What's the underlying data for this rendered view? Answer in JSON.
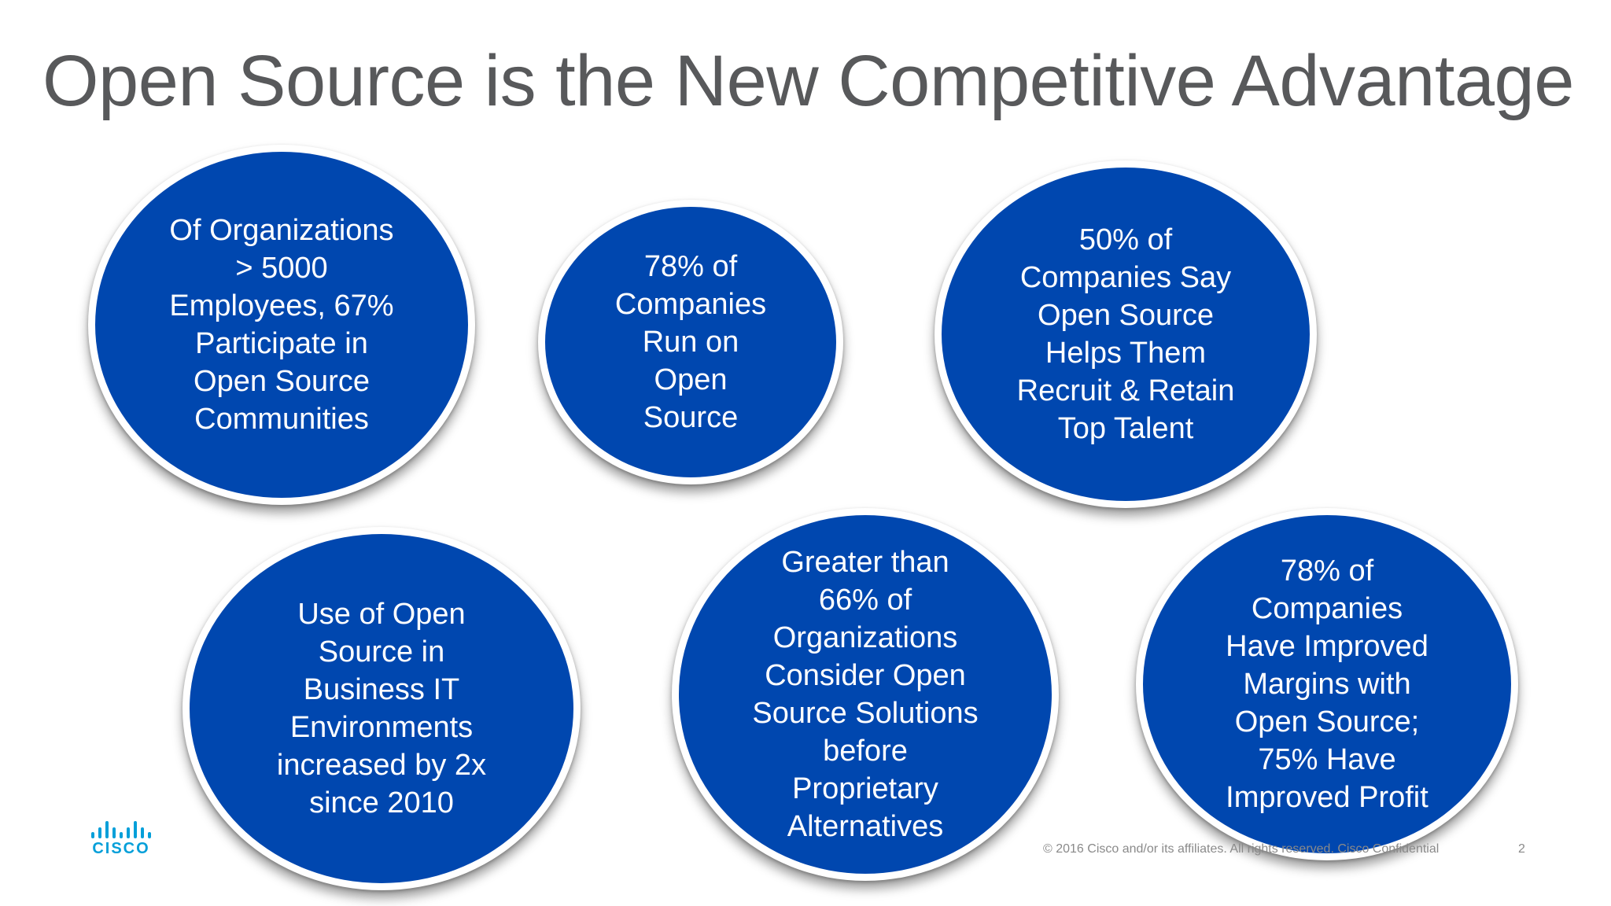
{
  "slide": {
    "title": "Open Source is the New Competitive Advantage",
    "bubbles": [
      {
        "text": "Of Organizations\n> 5000\nEmployees, 67%\nParticipate in\nOpen Source\nCommunities"
      },
      {
        "text": "78% of\nCompanies\nRun on\nOpen\nSource"
      },
      {
        "text": "50% of\nCompanies Say\nOpen Source\nHelps Them\nRecruit & Retain\nTop Talent"
      },
      {
        "text": "Use of Open\nSource in\nBusiness IT\nEnvironments\nincreased by 2x\nsince 2010"
      },
      {
        "text": "Greater than\n66% of\nOrganizations\nConsider Open\nSource Solutions\nbefore\nProprietary\nAlternatives"
      },
      {
        "text": "78% of\nCompanies\nHave Improved\nMargins with\nOpen Source;\n75% Have\nImproved Profit"
      }
    ],
    "logo": {
      "text": "CISCO"
    },
    "footer": {
      "copyright": "© 2016  Cisco and/or its affiliates. All rights reserved.   Cisco Confidential",
      "page_number": "2"
    },
    "colors": {
      "bubble": "#0047af",
      "title": "#58595b",
      "logo": "#049fd9"
    }
  }
}
